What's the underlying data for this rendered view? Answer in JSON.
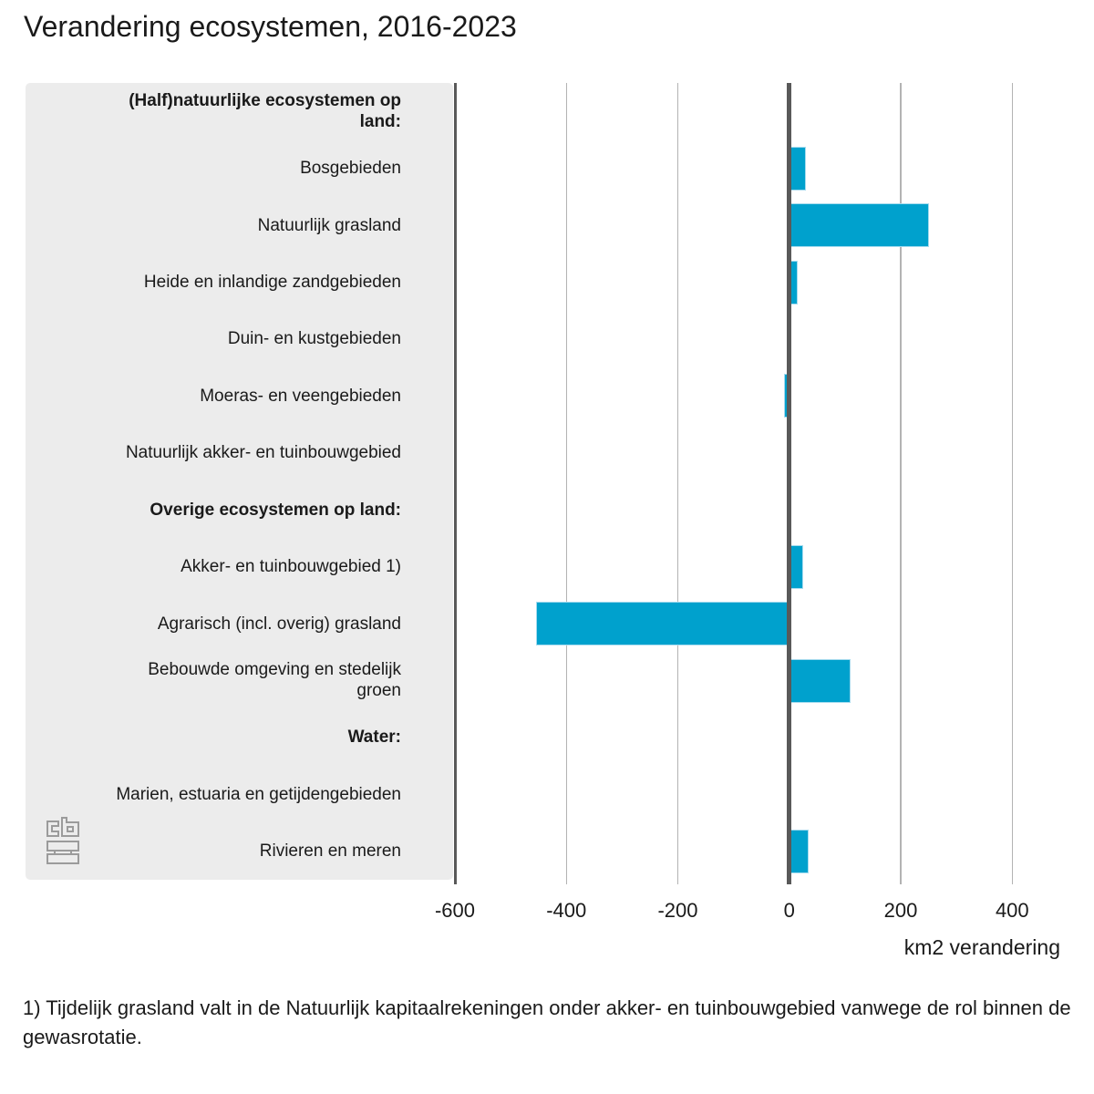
{
  "title": "Verandering ecosystemen, 2016-2023",
  "footnote": "1) Tijdelijk grasland valt in de Natuurlijk kapitaalrekeningen onder akker- en tuinbouwgebied vanwege de rol binnen de gewasrotatie.",
  "logo_name": "cbs-logo",
  "colors": {
    "bar": "#00a1cd",
    "bar_border": "#a6dbee",
    "panel_bg": "#ececec",
    "gridline": "#b3b3b3",
    "axis_line": "#595959",
    "text": "#1a1a1a",
    "logo": "#9b9b9b"
  },
  "chart_data": {
    "type": "bar",
    "orientation": "horizontal",
    "title": "Verandering ecosystemen, 2016-2023",
    "xlabel": "km2 verandering",
    "unit": "km2",
    "xlim": [
      -600,
      460
    ],
    "xticks": [
      -600,
      -400,
      -200,
      0,
      200,
      400
    ],
    "grid": true,
    "rows": [
      {
        "label": "(Half)natuurlijke ecosystemen op\nland:",
        "type": "header",
        "value": null
      },
      {
        "label": "Bosgebieden",
        "type": "item",
        "value": 30
      },
      {
        "label": "Natuurlijk grasland",
        "type": "item",
        "value": 250
      },
      {
        "label": "Heide en inlandige zandgebieden",
        "type": "item",
        "value": 15
      },
      {
        "label": "Duin- en kustgebieden",
        "type": "item",
        "value": -5
      },
      {
        "label": "Moeras- en veengebieden",
        "type": "item",
        "value": -10
      },
      {
        "label": "Natuurlijk akker- en tuinbouwgebied",
        "type": "item",
        "value": -5
      },
      {
        "label": "Overige ecosystemen op land:",
        "type": "header",
        "value": null
      },
      {
        "label": "Akker- en tuinbouwgebied 1)",
        "type": "item",
        "value": 25
      },
      {
        "label": "Agrarisch (incl. overig) grasland",
        "type": "item",
        "value": -455
      },
      {
        "label": "Bebouwde omgeving en stedelijk\ngroen",
        "type": "item",
        "value": 110
      },
      {
        "label": "Water:",
        "type": "header",
        "value": null
      },
      {
        "label": "Marien, estuaria en getijdengebieden",
        "type": "item",
        "value": 0
      },
      {
        "label": "Rivieren en meren",
        "type": "item",
        "value": 35
      }
    ]
  }
}
